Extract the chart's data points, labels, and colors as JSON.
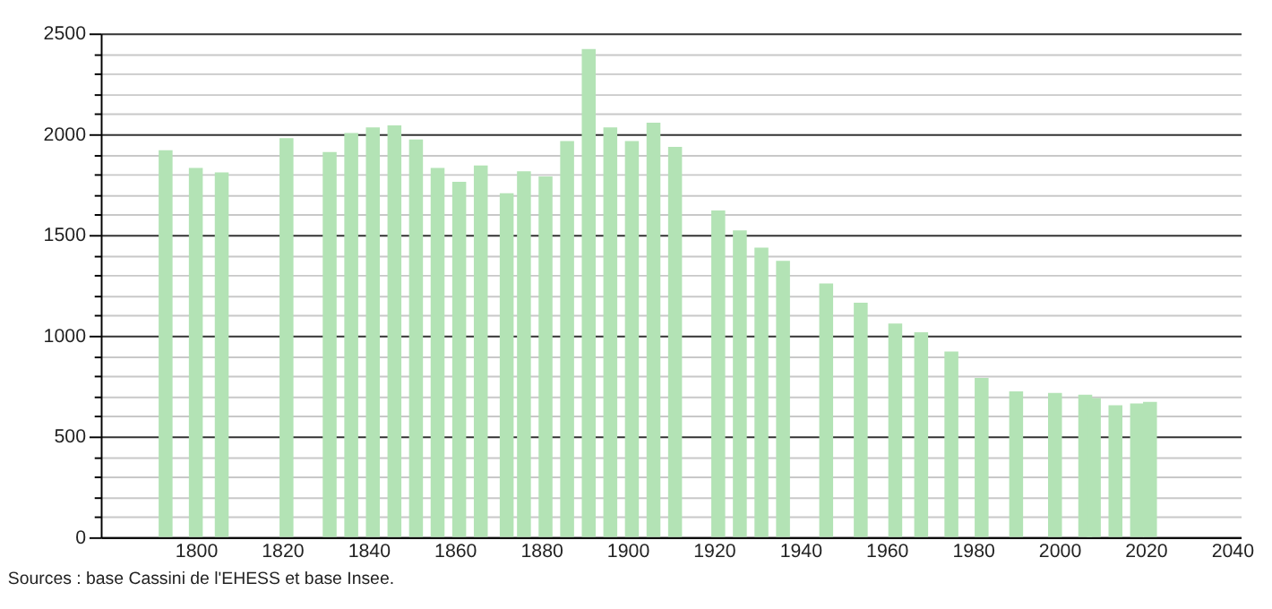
{
  "chart_data": {
    "type": "bar",
    "color": "#b3e3b5",
    "x": [
      1793,
      1800,
      1806,
      1821,
      1831,
      1836,
      1841,
      1846,
      1851,
      1856,
      1861,
      1866,
      1872,
      1876,
      1881,
      1886,
      1891,
      1896,
      1901,
      1906,
      1911,
      1921,
      1926,
      1931,
      1936,
      1946,
      1954,
      1962,
      1968,
      1975,
      1982,
      1990,
      1999,
      2006,
      2008,
      2013,
      2018,
      2021
    ],
    "values": [
      1920,
      1833,
      1810,
      1980,
      1911,
      2006,
      2034,
      2043,
      1974,
      1833,
      1764,
      1845,
      1707,
      1816,
      1790,
      1966,
      2422,
      2034,
      1966,
      2057,
      1937,
      1621,
      1523,
      1437,
      1371,
      1259,
      1164,
      1060,
      1017,
      922,
      790,
      724,
      716,
      707,
      690,
      655,
      664,
      672
    ],
    "xlim": [
      1780,
      2040
    ],
    "xticks": [
      1800,
      1820,
      1840,
      1860,
      1880,
      1900,
      1920,
      1940,
      1960,
      1980,
      2000,
      2020,
      2040
    ],
    "ylim": [
      0,
      2500
    ],
    "yticks": [
      0,
      {
        "value": 100,
        "label": null
      },
      {
        "value": 200,
        "label": null
      },
      {
        "value": 300,
        "label": null
      },
      {
        "value": 400,
        "label": null
      },
      500,
      {
        "value": 600,
        "label": null
      },
      {
        "value": 700,
        "label": null
      },
      {
        "value": 800,
        "label": null
      },
      {
        "value": 900,
        "label": null
      },
      1000,
      {
        "value": 1100,
        "label": null
      },
      {
        "value": 1200,
        "label": null
      },
      {
        "value": 1300,
        "label": null
      },
      {
        "value": 1400,
        "label": null
      },
      1500,
      {
        "value": 1600,
        "label": null
      },
      {
        "value": 1700,
        "label": null
      },
      {
        "value": 1800,
        "label": null
      },
      {
        "value": 1900,
        "label": null
      },
      2000,
      {
        "value": 2100,
        "label": null
      },
      {
        "value": 2200,
        "label": null
      },
      {
        "value": 2300,
        "label": null
      },
      {
        "value": 2400,
        "label": null
      },
      2500
    ],
    "grid": "y",
    "annotations": [
      "Sources : base Cassini de l'EHESS et base Insee."
    ]
  }
}
